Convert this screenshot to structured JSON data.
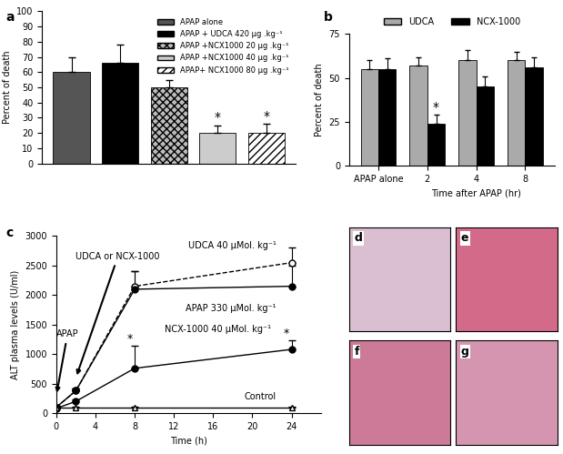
{
  "chart_data": [
    {
      "panel": "a",
      "type": "bar",
      "y_label": "Percent of death",
      "ylim": [
        0,
        100
      ],
      "yticks": [
        0,
        10,
        20,
        30,
        40,
        50,
        60,
        70,
        80,
        90,
        100
      ],
      "legend": "upper right",
      "tick_labels": "y",
      "series": [
        {
          "name": "APAP alone",
          "color": "#555555",
          "values": [
            60
          ],
          "errors": [
            10
          ]
        },
        {
          "name": "APAP + UDCA 420 µg .kg⁻¹",
          "color": "#000000",
          "values": [
            66
          ],
          "errors": [
            12
          ]
        },
        {
          "name": "APAP +NCX1000 20 µg .kg⁻¹",
          "color": "#bbbbbb",
          "values": [
            50
          ],
          "errors": [
            5
          ]
        },
        {
          "name": "APAP +NCX1000 40 µg .kg⁻¹",
          "color": "#cccccc",
          "values": [
            20
          ],
          "errors": [
            5
          ],
          "annotation": "*"
        },
        {
          "name": "APAP+ NCX1000 80 µg .kg⁻¹",
          "color": "#ffffff",
          "values": [
            20
          ],
          "errors": [
            6
          ],
          "annotation": "*"
        }
      ]
    },
    {
      "panel": "b",
      "type": "bar",
      "categories": [
        "APAP alone",
        "2",
        "4",
        "8"
      ],
      "x_label": "Time after APAP (hr)",
      "y_label": "Percent of death",
      "ylim": [
        0,
        75
      ],
      "yticks": [
        0,
        25,
        50,
        75
      ],
      "legend": "above",
      "series": [
        {
          "name": "UDCA",
          "color": "#aaaaaa",
          "values": [
            55,
            57,
            60,
            60
          ],
          "errors": [
            5,
            5,
            6,
            5
          ]
        },
        {
          "name": "NCX-1000",
          "color": "#000000",
          "values": [
            55,
            24,
            45,
            56
          ],
          "errors": [
            6,
            5,
            6,
            6
          ],
          "annotations": [
            null,
            "*",
            null,
            null
          ]
        }
      ]
    },
    {
      "panel": "c",
      "type": "line",
      "x": [
        0,
        2,
        8,
        24
      ],
      "xlim": [
        0,
        27
      ],
      "xticks": [
        0,
        4,
        8,
        12,
        16,
        20,
        24
      ],
      "ylim": [
        0,
        3000
      ],
      "yticks": [
        0,
        500,
        1000,
        1500,
        2000,
        2500,
        3000
      ],
      "x_label": "Time (h)",
      "y_label": "ALT plasma levels (U/ml)",
      "annotations": [
        {
          "text": "APAP",
          "x": 0
        },
        {
          "text": "UDCA or NCX-1000",
          "x": 2
        }
      ],
      "series": [
        {
          "name": "UDCA 40 µMol. kg⁻¹",
          "color": "#000000",
          "marker": "open_circle",
          "line_style": "dashed",
          "values": [
            100,
            380,
            2150,
            2550
          ],
          "errors": [
            20,
            30,
            250,
            250
          ]
        },
        {
          "name": "APAP 330 µMol. kg⁻¹",
          "color": "#000000",
          "marker": "circle",
          "line_style": "solid",
          "values": [
            100,
            380,
            2100,
            2150
          ],
          "errors": [
            20,
            30,
            300,
            350
          ]
        },
        {
          "name": "NCX-1000 40 µMol. kg⁻¹",
          "color": "#000000",
          "marker": "circle",
          "line_style": "solid",
          "values": [
            80,
            200,
            760,
            1080
          ],
          "errors": [
            20,
            30,
            380,
            150
          ],
          "annotations": [
            null,
            null,
            "*",
            "*"
          ]
        },
        {
          "name": "Control",
          "color": "#000000",
          "marker": "open_triangle",
          "line_style": "solid",
          "values": [
            100,
            100,
            100,
            100
          ],
          "errors": [
            10,
            10,
            10,
            10
          ]
        }
      ]
    }
  ],
  "images": {
    "labels": [
      "d",
      "e",
      "f",
      "g"
    ]
  }
}
